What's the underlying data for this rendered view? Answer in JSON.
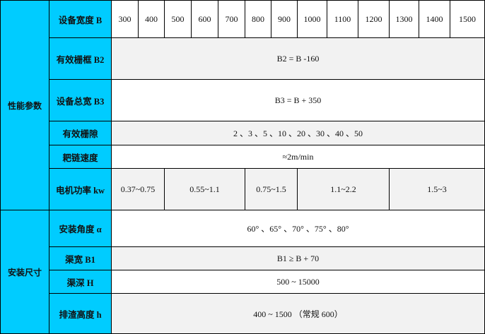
{
  "groups": {
    "performance": "性能参数",
    "install": "安装尺寸"
  },
  "rows": {
    "width": {
      "label": "设备宽度 B",
      "values": [
        "300",
        "400",
        "500",
        "600",
        "700",
        "800",
        "900",
        "1000",
        "1100",
        "1200",
        "1300",
        "1400",
        "1500"
      ]
    },
    "b2": {
      "label": "有效栅框  B2",
      "value": "B2 = B -160"
    },
    "b3": {
      "label": "设备总宽  B3",
      "value": "B3 = B + 350"
    },
    "gap": {
      "label": "有效栅隙",
      "value": "2 、3 、5 、10 、20 、30 、40 、50"
    },
    "speed": {
      "label": "耙链速度",
      "value": "≈2m/min"
    },
    "power": {
      "label": "电机功率  kw",
      "values": [
        "0.37~0.75",
        "0.55~1.1",
        "0.75~1.5",
        "1.1~2.2",
        "1.5~3"
      ]
    },
    "angle": {
      "label": "安装角度  α",
      "value": "60° 、65° 、70° 、75° 、80°"
    },
    "b1": {
      "label": "渠宽  B1",
      "value": "B1  ≥  B + 70"
    },
    "h": {
      "label": "渠深  H",
      "value": "500 ~ 15000"
    },
    "discharge": {
      "label": "排渣高度  h",
      "value": "400 ~ 1500  （常规 600）"
    }
  },
  "colors": {
    "label_bg": "#00ccff",
    "alt_row": "#f2f2f2"
  }
}
